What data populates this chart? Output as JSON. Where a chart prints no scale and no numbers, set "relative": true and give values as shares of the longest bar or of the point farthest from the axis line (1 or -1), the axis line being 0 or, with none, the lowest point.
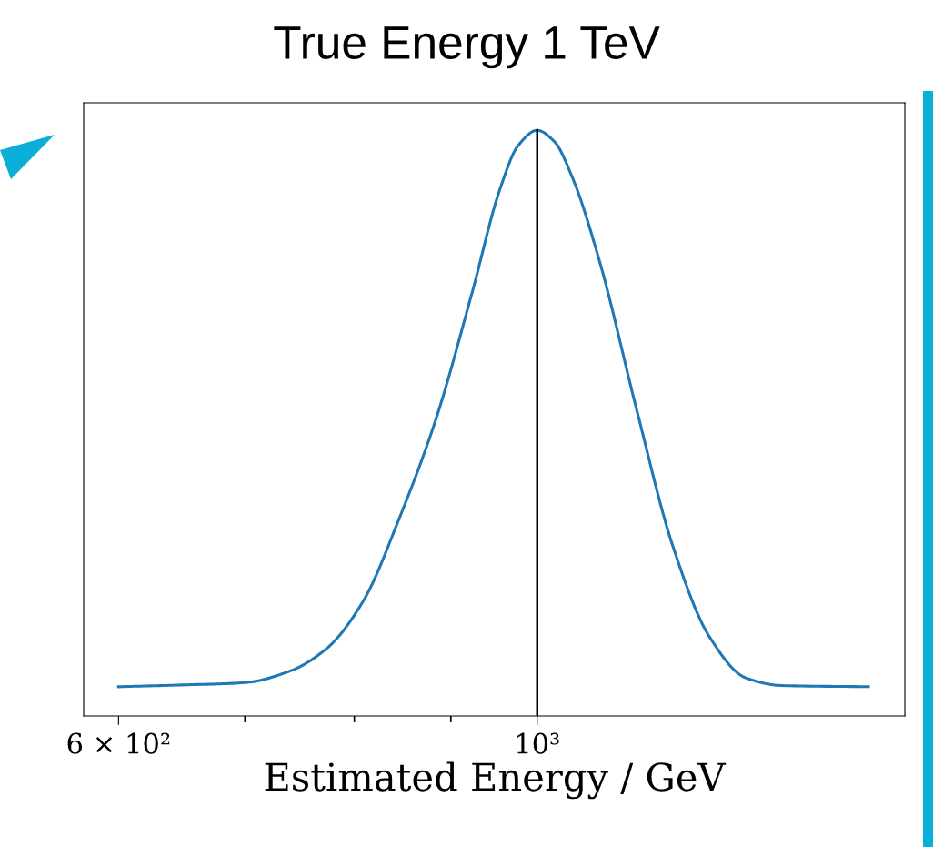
{
  "chart_data": {
    "type": "line",
    "title": "True Energy 1 TeV",
    "xlabel": "Estimated Energy / GeV",
    "log": "x",
    "relative": true,
    "tick_labels": "x",
    "grid": false,
    "legend": false,
    "xlim": [
      575,
      1566
    ],
    "xticks": [
      {
        "value": 600,
        "label": "6 × 10²"
      },
      {
        "value": 700,
        "label": null
      },
      {
        "value": 800,
        "label": null
      },
      {
        "value": 900,
        "label": null
      },
      {
        "value": 1000,
        "label": "10³"
      }
    ],
    "ref_lines": [
      {
        "axis": "x",
        "value": 1000,
        "color": "#000000"
      }
    ],
    "series": [
      {
        "color": "#1f77b4",
        "x": [
          600,
          648,
          700,
          740,
          774,
          809,
          845,
          884,
          924,
          955,
          977,
          1000,
          1021,
          1044,
          1080,
          1129,
          1180,
          1234,
          1290,
          1348,
          1498
        ],
        "values": [
          0.05,
          0.053,
          0.057,
          0.077,
          0.116,
          0.197,
          0.337,
          0.508,
          0.725,
          0.897,
          0.974,
          1,
          0.981,
          0.919,
          0.772,
          0.523,
          0.29,
          0.135,
          0.065,
          0.052,
          0.05
        ]
      }
    ]
  }
}
